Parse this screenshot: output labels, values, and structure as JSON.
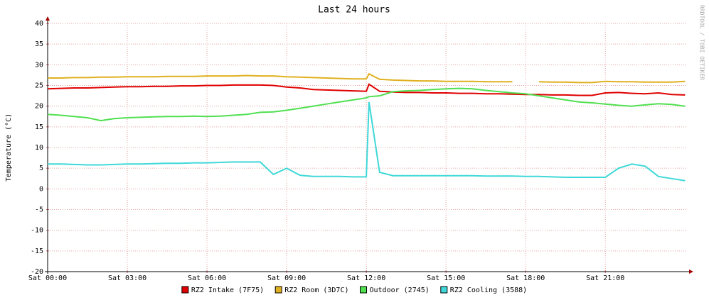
{
  "chart_data": {
    "type": "line",
    "title": "Last 24 hours",
    "y_label": "Temperature (°C)",
    "side_label": "RRDTOOL / TOBI OETIKER",
    "x": [
      0,
      0.5,
      1,
      1.5,
      2,
      2.5,
      3,
      3.5,
      4,
      4.5,
      5,
      5.5,
      6,
      6.5,
      7,
      7.5,
      8,
      8.5,
      9,
      9.5,
      10,
      10.5,
      11,
      11.5,
      12,
      12.1,
      12.5,
      13,
      13.5,
      14,
      14.5,
      15,
      15.5,
      16,
      16.5,
      17,
      17.5,
      18,
      18.5,
      19,
      19.5,
      20,
      20.5,
      21,
      21.5,
      22,
      22.5,
      23,
      23.5,
      24
    ],
    "xlim": [
      0,
      24.1
    ],
    "xticks": [
      {
        "value": 0,
        "label": "Sat 00:00"
      },
      {
        "value": 3,
        "label": "Sat 03:00"
      },
      {
        "value": 6,
        "label": "Sat 06:00"
      },
      {
        "value": 9,
        "label": "Sat 09:00"
      },
      {
        "value": 12,
        "label": "Sat 12:00"
      },
      {
        "value": 15,
        "label": "Sat 15:00"
      },
      {
        "value": 18,
        "label": "Sat 18:00"
      },
      {
        "value": 21,
        "label": "Sat 21:00"
      }
    ],
    "ylim": [
      -20,
      40
    ],
    "yticks": [
      -20,
      -15,
      -10,
      -5,
      0,
      5,
      10,
      15,
      20,
      25,
      30,
      35,
      40
    ],
    "grid": true,
    "series": [
      {
        "name": "RZ2 Intake (7F75)",
        "color": "#e00000",
        "values": [
          24.2,
          24.3,
          24.4,
          24.4,
          24.5,
          24.6,
          24.7,
          24.7,
          24.8,
          24.8,
          24.9,
          24.9,
          25,
          25,
          25.1,
          25.1,
          25.1,
          25,
          24.6,
          24.4,
          24,
          23.9,
          23.8,
          23.7,
          23.6,
          25.3,
          23.6,
          23.4,
          23.3,
          23.3,
          23.2,
          23.2,
          23.1,
          23.1,
          23,
          23,
          22.9,
          22.8,
          22.8,
          22.7,
          22.7,
          22.6,
          22.6,
          23.2,
          23.3,
          23.1,
          23,
          23.2,
          22.8,
          22.7
        ]
      },
      {
        "name": "RZ2 Room (3D7C)",
        "color": "#e0b020",
        "values": [
          26.8,
          26.8,
          26.9,
          26.9,
          27,
          27,
          27.1,
          27.1,
          27.1,
          27.2,
          27.2,
          27.2,
          27.3,
          27.3,
          27.3,
          27.4,
          27.3,
          27.3,
          27.1,
          27,
          26.9,
          26.8,
          26.7,
          26.6,
          26.6,
          27.8,
          26.5,
          26.3,
          26.2,
          26.1,
          26.1,
          26,
          26,
          26,
          25.9,
          25.9,
          25.9,
          null,
          25.9,
          25.8,
          25.8,
          25.7,
          25.7,
          26,
          25.9,
          25.9,
          25.8,
          25.8,
          25.8,
          26
        ]
      },
      {
        "name": "Outdoor (2745)",
        "color": "#50e050",
        "values": [
          18,
          17.8,
          17.5,
          17.2,
          16.5,
          17,
          17.2,
          17.3,
          17.4,
          17.5,
          17.5,
          17.6,
          17.5,
          17.6,
          17.8,
          18,
          18.5,
          18.6,
          19,
          19.5,
          20,
          20.5,
          21,
          21.5,
          22,
          22.3,
          22.5,
          23.5,
          23.7,
          23.8,
          24,
          24.2,
          24.3,
          24.2,
          23.8,
          23.5,
          23.2,
          23,
          22.5,
          22,
          21.5,
          21,
          20.8,
          20.5,
          20.2,
          20,
          20.3,
          20.6,
          20.4,
          20
        ]
      },
      {
        "name": "RZ2 Cooling (3588)",
        "color": "#40d8d8",
        "values": [
          6,
          6,
          5.9,
          5.8,
          5.8,
          5.9,
          6,
          6,
          6.1,
          6.2,
          6.2,
          6.3,
          6.3,
          6.4,
          6.5,
          6.5,
          6.5,
          3.5,
          5,
          3.3,
          3,
          3,
          3,
          2.9,
          2.9,
          21,
          4,
          3.2,
          3.2,
          3.2,
          3.2,
          3.2,
          3.2,
          3.2,
          3.1,
          3.1,
          3.1,
          3,
          3,
          2.9,
          2.8,
          2.8,
          2.8,
          2.8,
          5,
          6,
          5.5,
          3,
          2.5,
          2
        ]
      }
    ]
  }
}
